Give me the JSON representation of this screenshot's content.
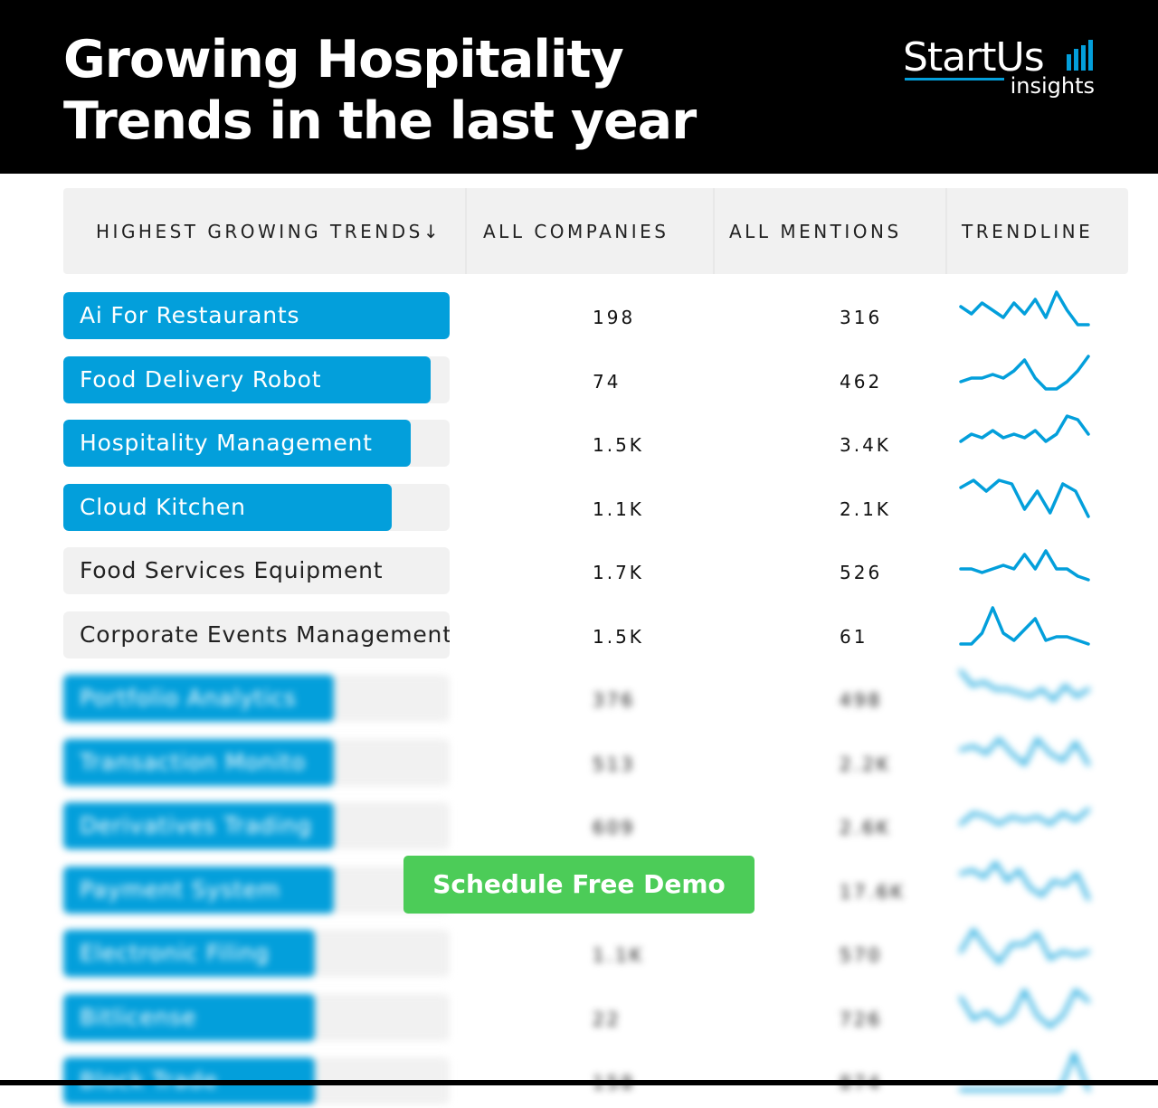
{
  "header": {
    "title_line1": "Growing Hospitality",
    "title_line2": "Trends in the last year"
  },
  "logo": {
    "brand": "StartUs",
    "sub": "insights"
  },
  "columns": {
    "trends": "HIGHEST GROWING TRENDS",
    "sort_icon": "↓",
    "companies": "ALL COMPANIES",
    "mentions": "ALL MENTIONS",
    "trendline": "TRENDLINE"
  },
  "colors": {
    "accent": "#039fdb",
    "cta": "#4ccc58"
  },
  "rows": [
    {
      "name": "Ai For Restaurants",
      "companies": "198",
      "mentions": "316",
      "growth": 1.0,
      "blurred": false,
      "trend": [
        5,
        3,
        6,
        4,
        2,
        6,
        3,
        7,
        2,
        9,
        4,
        0,
        0
      ]
    },
    {
      "name": "Food Delivery Robot",
      "companies": "74",
      "mentions": "462",
      "growth": 0.95,
      "blurred": false,
      "trend": [
        2,
        3,
        3,
        4,
        3,
        5,
        8,
        3,
        0,
        0,
        2,
        5,
        9
      ]
    },
    {
      "name": "Hospitality Management",
      "companies": "1.5K",
      "mentions": "3.4K",
      "growth": 0.9,
      "blurred": false,
      "trend": [
        3,
        5,
        4,
        6,
        4,
        5,
        4,
        6,
        3,
        5,
        10,
        9,
        5
      ]
    },
    {
      "name": "Cloud Kitchen",
      "companies": "1.1K",
      "mentions": "2.1K",
      "growth": 0.85,
      "blurred": false,
      "trend": [
        8,
        10,
        7,
        10,
        9,
        2,
        7,
        1,
        9,
        7,
        0
      ]
    },
    {
      "name": "Food Services Equipment",
      "companies": "1.7K",
      "mentions": "526",
      "growth": 0,
      "blurred": false,
      "trend": [
        3,
        3,
        2,
        3,
        4,
        3,
        7,
        3,
        8,
        3,
        3,
        1,
        0
      ]
    },
    {
      "name": "Corporate Events Management",
      "companies": "1.5K",
      "mentions": "61",
      "growth": 0,
      "blurred": false,
      "trend": [
        0,
        0,
        3,
        10,
        3,
        1,
        4,
        7,
        1,
        2,
        2,
        1,
        0
      ]
    },
    {
      "name": "Portfolio Analytics",
      "companies": "376",
      "mentions": "498",
      "growth": 0.7,
      "blurred": true,
      "trend": [
        10,
        6,
        7,
        5,
        5,
        4,
        3,
        5,
        2,
        6,
        3,
        5
      ]
    },
    {
      "name": "Transaction Monito",
      "companies": "513",
      "mentions": "2.2K",
      "growth": 0.7,
      "blurred": true,
      "trend": [
        6,
        7,
        5,
        9,
        5,
        2,
        9,
        5,
        3,
        8,
        2
      ]
    },
    {
      "name": "Derivatives Trading",
      "companies": "609",
      "mentions": "2.6K",
      "growth": 0.7,
      "blurred": true,
      "trend": [
        3,
        6,
        5,
        3,
        5,
        4,
        5,
        3,
        6,
        4,
        7
      ]
    },
    {
      "name": "Payment System",
      "companies": "",
      "mentions": "17.6K",
      "growth": 0.7,
      "blurred": true,
      "trend": [
        7,
        8,
        6,
        10,
        5,
        8,
        3,
        1,
        5,
        4,
        7,
        0
      ]
    },
    {
      "name": "Electronic Filing",
      "companies": "1.1K",
      "mentions": "570",
      "growth": 0.65,
      "blurred": true,
      "trend": [
        3,
        9,
        4,
        0,
        5,
        5,
        8,
        1,
        3,
        2,
        3
      ]
    },
    {
      "name": "Bitlicense",
      "companies": "22",
      "mentions": "726",
      "growth": 0.65,
      "blurred": true,
      "trend": [
        8,
        2,
        4,
        1,
        3,
        10,
        3,
        0,
        3,
        10,
        7
      ]
    },
    {
      "name": "Block Trade",
      "companies": "158",
      "mentions": "874",
      "growth": 0.65,
      "blurred": true,
      "trend": [
        0,
        0,
        0,
        0,
        0,
        0,
        0,
        0,
        10,
        0
      ]
    }
  ],
  "cta": {
    "label": "Schedule Free Demo"
  }
}
